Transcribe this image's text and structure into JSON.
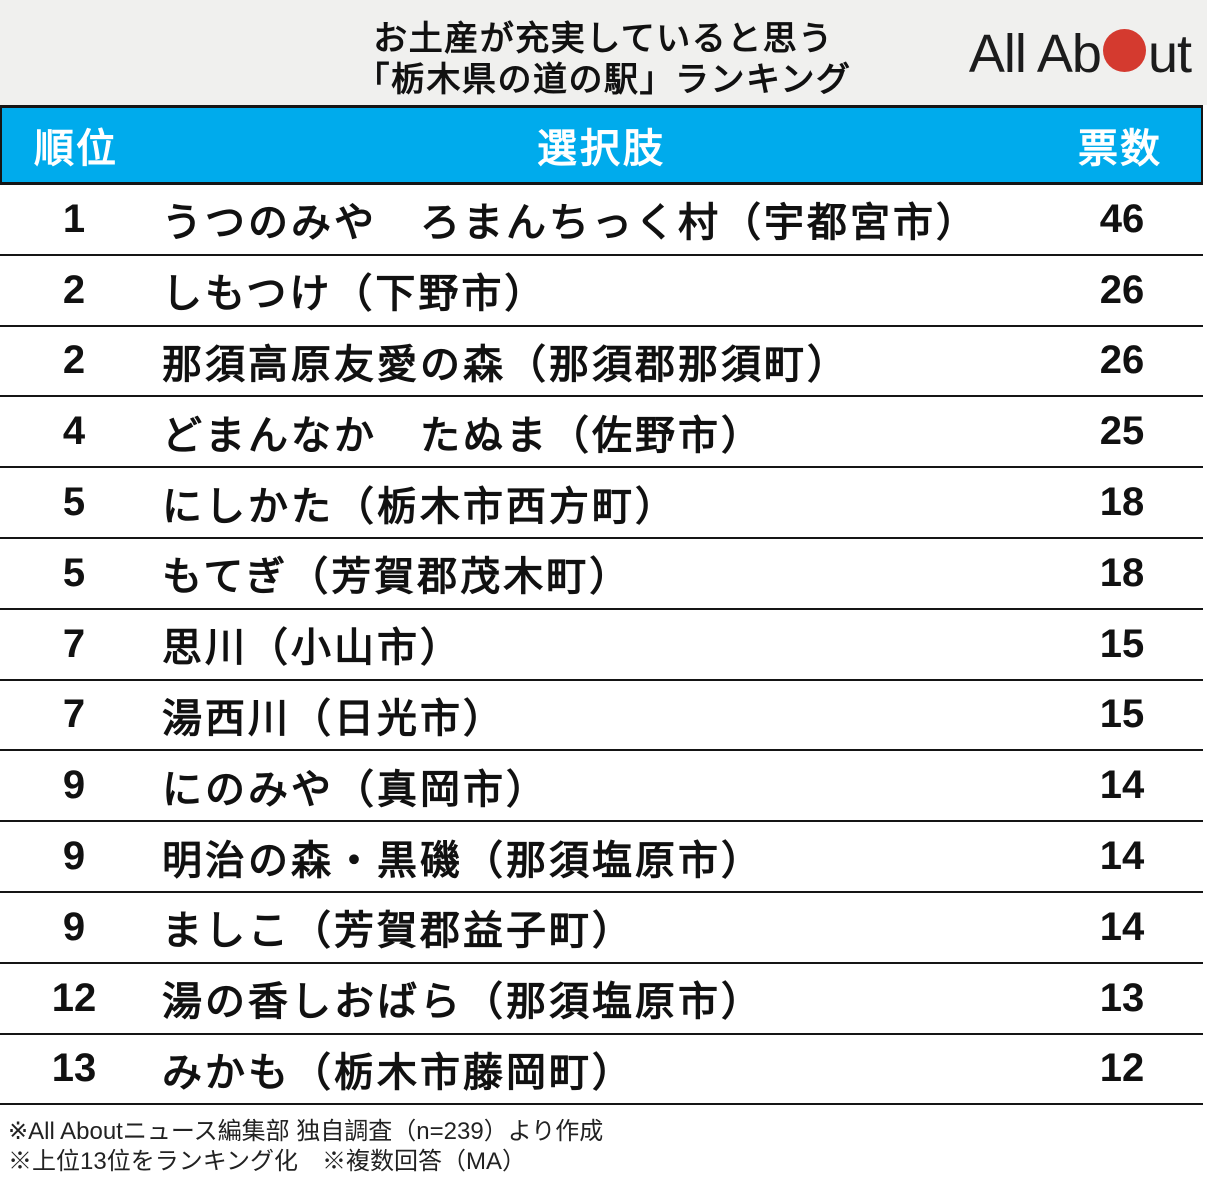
{
  "header": {
    "title_line1": "お土産が充実していると思う",
    "title_line2": "「栃木県の道の駅」ランキング",
    "logo_part1": "All Ab",
    "logo_part2": "ut"
  },
  "table": {
    "columns": [
      "順位",
      "選択肢",
      "票数"
    ],
    "rows": [
      {
        "rank": "1",
        "name": "うつのみや　ろまんちっく村（宇都宮市）",
        "votes": "46"
      },
      {
        "rank": "2",
        "name": "しもつけ（下野市）",
        "votes": "26"
      },
      {
        "rank": "2",
        "name": "那須高原友愛の森（那須郡那須町）",
        "votes": "26"
      },
      {
        "rank": "4",
        "name": "どまんなか　たぬま（佐野市）",
        "votes": "25"
      },
      {
        "rank": "5",
        "name": "にしかた（栃木市西方町）",
        "votes": "18"
      },
      {
        "rank": "5",
        "name": "もてぎ（芳賀郡茂木町）",
        "votes": "18"
      },
      {
        "rank": "7",
        "name": "思川（小山市）",
        "votes": "15"
      },
      {
        "rank": "7",
        "name": "湯西川（日光市）",
        "votes": "15"
      },
      {
        "rank": "9",
        "name": "にのみや（真岡市）",
        "votes": "14"
      },
      {
        "rank": "9",
        "name": "明治の森・黒磯（那須塩原市）",
        "votes": "14"
      },
      {
        "rank": "9",
        "name": "ましこ（芳賀郡益子町）",
        "votes": "14"
      },
      {
        "rank": "12",
        "name": "湯の香しおばら（那須塩原市）",
        "votes": "13"
      },
      {
        "rank": "13",
        "name": "みかも（栃木市藤岡町）",
        "votes": "12"
      }
    ]
  },
  "footer": {
    "line1": "※All Aboutニュース編集部 独自調査（n=239）より作成",
    "line2": "※上位13位をランキング化　※複数回答（MA）"
  },
  "colors": {
    "table_header_bg": "#00ABEC",
    "top_band_bg": "#F0F0EE",
    "logo_red": "#D43A2F"
  },
  "chart_data": {
    "type": "table",
    "title": "お土産が充実していると思う「栃木県の道の駅」ランキング",
    "columns": [
      "順位",
      "選択肢",
      "票数"
    ],
    "ranks": [
      1,
      2,
      2,
      4,
      5,
      5,
      7,
      7,
      9,
      9,
      9,
      12,
      13
    ],
    "categories": [
      "うつのみや　ろまんちっく村（宇都宮市）",
      "しもつけ（下野市）",
      "那須高原友愛の森（那須郡那須町）",
      "どまんなか　たぬま（佐野市）",
      "にしかた（栃木市西方町）",
      "もてぎ（芳賀郡茂木町）",
      "思川（小山市）",
      "湯西川（日光市）",
      "にのみや（真岡市）",
      "明治の森・黒磯（那須塩原市）",
      "ましこ（芳賀郡益子町）",
      "湯の香しおばら（那須塩原市）",
      "みかも（栃木市藤岡町）"
    ],
    "values": [
      46,
      26,
      26,
      25,
      18,
      18,
      15,
      15,
      14,
      14,
      14,
      13,
      12
    ]
  }
}
